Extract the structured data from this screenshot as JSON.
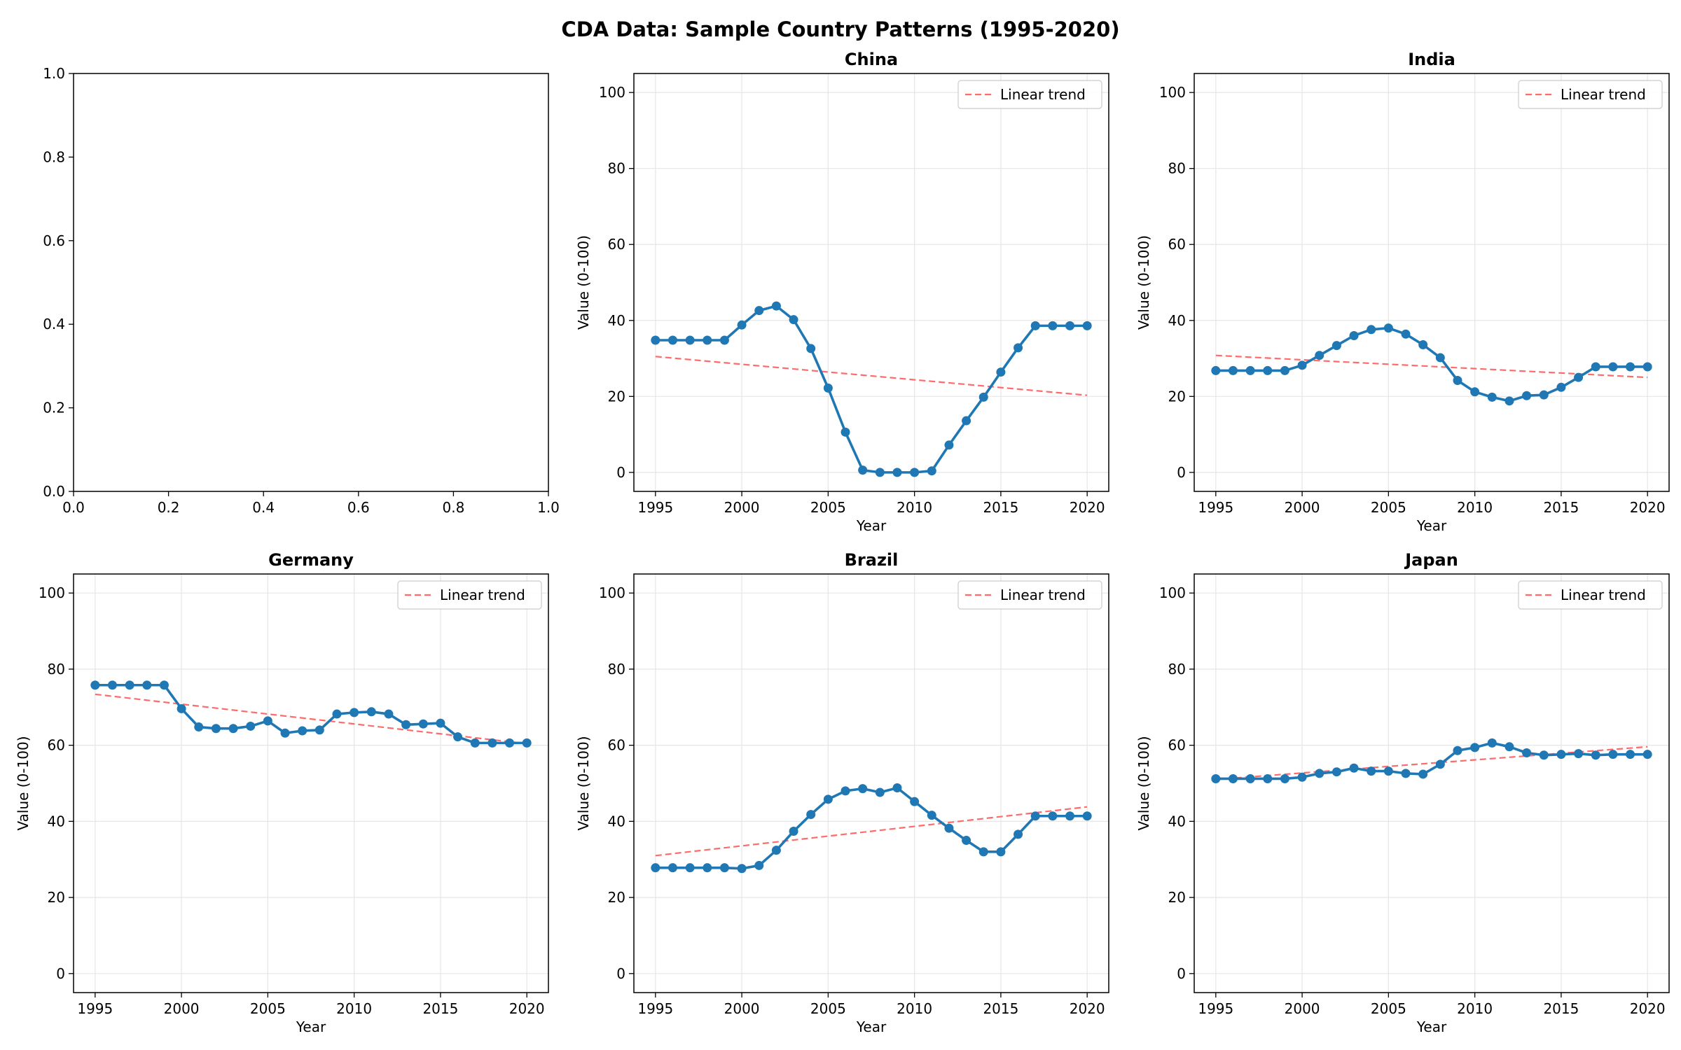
{
  "figure_title": "CDA Data: Sample Country Patterns (1995-2020)",
  "colors": {
    "series": "#1f77b4",
    "trend": "#ff6b6b",
    "grid": "#e6e6e6",
    "axis": "#000000"
  },
  "chart_data": [
    {
      "type": "empty",
      "title": "",
      "xlim": [
        0,
        1
      ],
      "ylim": [
        0,
        1
      ],
      "xticks": [
        0.0,
        0.2,
        0.4,
        0.6,
        0.8,
        1.0
      ],
      "yticks": [
        0.0,
        0.2,
        0.4,
        0.6,
        0.8,
        1.0
      ],
      "xtick_labels": [
        "0.0",
        "0.2",
        "0.4",
        "0.6",
        "0.8",
        "1.0"
      ],
      "ytick_labels": [
        "0.0",
        "0.2",
        "0.4",
        "0.6",
        "0.8",
        "1.0"
      ],
      "grid": false
    },
    {
      "type": "line",
      "title": "China",
      "xlabel": "Year",
      "ylabel": "Value (0-100)",
      "xlim": [
        1993.75,
        2021.25
      ],
      "ylim": [
        -5,
        105
      ],
      "xticks": [
        1995,
        2000,
        2005,
        2010,
        2015,
        2020
      ],
      "yticks": [
        0,
        20,
        40,
        60,
        80,
        100
      ],
      "grid": true,
      "legend_position": "top-right",
      "legend": [
        "Linear trend"
      ],
      "x": [
        1995,
        1996,
        1997,
        1998,
        1999,
        2000,
        2001,
        2002,
        2003,
        2004,
        2005,
        2006,
        2007,
        2008,
        2009,
        2010,
        2011,
        2012,
        2013,
        2014,
        2015,
        2016,
        2017,
        2018,
        2019,
        2020
      ],
      "values": [
        34.8,
        34.8,
        34.8,
        34.8,
        34.8,
        38.8,
        42.6,
        43.8,
        40.2,
        32.6,
        22.2,
        10.6,
        0.6,
        0,
        0,
        0,
        0.4,
        7.2,
        13.6,
        19.8,
        26.4,
        32.8,
        38.6,
        38.6,
        38.6,
        38.6
      ],
      "trend": [
        30.5,
        20.3
      ]
    },
    {
      "type": "line",
      "title": "India",
      "xlabel": "Year",
      "ylabel": "Value (0-100)",
      "xlim": [
        1993.75,
        2021.25
      ],
      "ylim": [
        -5,
        105
      ],
      "xticks": [
        1995,
        2000,
        2005,
        2010,
        2015,
        2020
      ],
      "yticks": [
        0,
        20,
        40,
        60,
        80,
        100
      ],
      "grid": true,
      "legend_position": "top-right",
      "legend": [
        "Linear trend"
      ],
      "x": [
        1995,
        1996,
        1997,
        1998,
        1999,
        2000,
        2001,
        2002,
        2003,
        2004,
        2005,
        2006,
        2007,
        2008,
        2009,
        2010,
        2011,
        2012,
        2013,
        2014,
        2015,
        2016,
        2017,
        2018,
        2019,
        2020
      ],
      "values": [
        26.8,
        26.8,
        26.8,
        26.8,
        26.8,
        28.2,
        30.8,
        33.4,
        36.0,
        37.6,
        38.0,
        36.4,
        33.6,
        30.2,
        24.2,
        21.2,
        19.8,
        18.8,
        20.2,
        20.4,
        22.4,
        25.0,
        27.8,
        27.8,
        27.8,
        27.8
      ],
      "trend": [
        30.8,
        25.0
      ]
    },
    {
      "type": "line",
      "title": "Germany",
      "xlabel": "Year",
      "ylabel": "Value (0-100)",
      "xlim": [
        1993.75,
        2021.25
      ],
      "ylim": [
        -5,
        105
      ],
      "xticks": [
        1995,
        2000,
        2005,
        2010,
        2015,
        2020
      ],
      "yticks": [
        0,
        20,
        40,
        60,
        80,
        100
      ],
      "grid": true,
      "legend_position": "top-right",
      "legend": [
        "Linear trend"
      ],
      "x": [
        1995,
        1996,
        1997,
        1998,
        1999,
        2000,
        2001,
        2002,
        2003,
        2004,
        2005,
        2006,
        2007,
        2008,
        2009,
        2010,
        2011,
        2012,
        2013,
        2014,
        2015,
        2016,
        2017,
        2018,
        2019,
        2020
      ],
      "values": [
        75.8,
        75.8,
        75.8,
        75.8,
        75.8,
        69.6,
        64.8,
        64.4,
        64.4,
        65.0,
        66.4,
        63.2,
        63.8,
        64.0,
        68.2,
        68.6,
        68.8,
        68.2,
        65.4,
        65.6,
        65.8,
        62.2,
        60.6,
        60.6,
        60.6,
        60.6
      ],
      "trend": [
        73.4,
        60.4
      ]
    },
    {
      "type": "line",
      "title": "Brazil",
      "xlabel": "Year",
      "ylabel": "Value (0-100)",
      "xlim": [
        1993.75,
        2021.25
      ],
      "ylim": [
        -5,
        105
      ],
      "xticks": [
        1995,
        2000,
        2005,
        2010,
        2015,
        2020
      ],
      "yticks": [
        0,
        20,
        40,
        60,
        80,
        100
      ],
      "grid": true,
      "legend_position": "top-right",
      "legend": [
        "Linear trend"
      ],
      "x": [
        1995,
        1996,
        1997,
        1998,
        1999,
        2000,
        2001,
        2002,
        2003,
        2004,
        2005,
        2006,
        2007,
        2008,
        2009,
        2010,
        2011,
        2012,
        2013,
        2014,
        2015,
        2016,
        2017,
        2018,
        2019,
        2020
      ],
      "values": [
        27.8,
        27.8,
        27.8,
        27.8,
        27.8,
        27.6,
        28.4,
        32.4,
        37.4,
        41.8,
        45.8,
        48.0,
        48.6,
        47.6,
        48.8,
        45.2,
        41.6,
        38.2,
        35.0,
        32.0,
        32.0,
        36.6,
        41.4,
        41.4,
        41.4,
        41.4
      ],
      "trend": [
        31.0,
        43.8
      ]
    },
    {
      "type": "line",
      "title": "Japan",
      "xlabel": "Year",
      "ylabel": "Value (0-100)",
      "xlim": [
        1993.75,
        2021.25
      ],
      "ylim": [
        -5,
        105
      ],
      "xticks": [
        1995,
        2000,
        2005,
        2010,
        2015,
        2020
      ],
      "yticks": [
        0,
        20,
        40,
        60,
        80,
        100
      ],
      "grid": true,
      "legend_position": "top-right",
      "legend": [
        "Linear trend"
      ],
      "x": [
        1995,
        1996,
        1997,
        1998,
        1999,
        2000,
        2001,
        2002,
        2003,
        2004,
        2005,
        2006,
        2007,
        2008,
        2009,
        2010,
        2011,
        2012,
        2013,
        2014,
        2015,
        2016,
        2017,
        2018,
        2019,
        2020
      ],
      "values": [
        51.2,
        51.2,
        51.2,
        51.2,
        51.2,
        51.6,
        52.6,
        53.0,
        54.0,
        53.2,
        53.2,
        52.6,
        52.4,
        55.0,
        58.6,
        59.4,
        60.6,
        59.6,
        58.0,
        57.4,
        57.6,
        57.8,
        57.4,
        57.6,
        57.6,
        57.6
      ],
      "trend": [
        51.0,
        59.6
      ]
    }
  ]
}
